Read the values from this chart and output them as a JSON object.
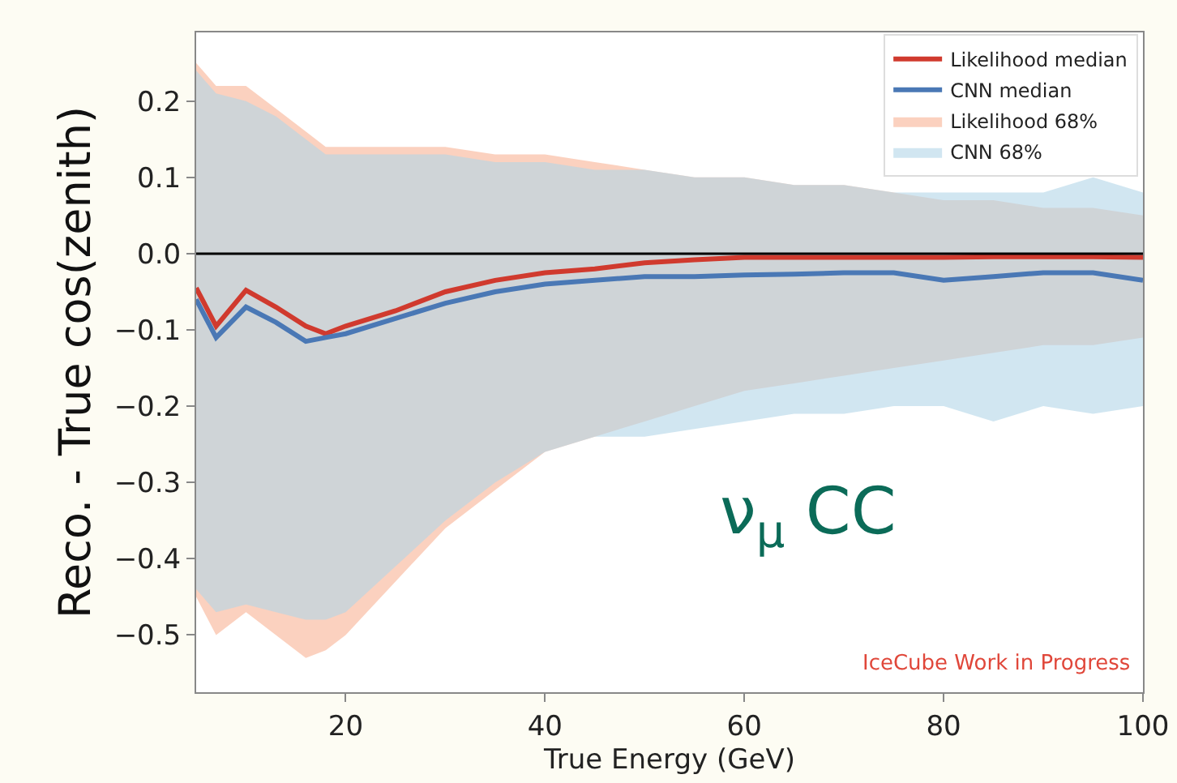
{
  "chart_data": {
    "type": "line",
    "xlabel": "True Energy (GeV)",
    "ylabel": "Reco. - True cos(zenith)",
    "x": [
      5,
      7,
      10,
      13,
      16,
      18,
      20,
      25,
      30,
      35,
      40,
      45,
      50,
      55,
      60,
      65,
      70,
      75,
      80,
      85,
      90,
      95,
      100
    ],
    "series": [
      {
        "name": "Likelihood median",
        "color": "#d03a2e",
        "values": [
          -0.045,
          -0.095,
          -0.048,
          -0.07,
          -0.095,
          -0.105,
          -0.095,
          -0.075,
          -0.05,
          -0.035,
          -0.025,
          -0.02,
          -0.012,
          -0.008,
          -0.005,
          -0.005,
          -0.005,
          -0.005,
          -0.005,
          -0.004,
          -0.004,
          -0.004,
          -0.005
        ]
      },
      {
        "name": "CNN median",
        "color": "#4a78b5",
        "values": [
          -0.06,
          -0.11,
          -0.07,
          -0.09,
          -0.115,
          -0.11,
          -0.105,
          -0.085,
          -0.065,
          -0.05,
          -0.04,
          -0.035,
          -0.03,
          -0.03,
          -0.028,
          -0.027,
          -0.025,
          -0.025,
          -0.035,
          -0.03,
          -0.025,
          -0.025,
          -0.035
        ]
      },
      {
        "name": "Likelihood 68%",
        "color": "#f9b394",
        "values": [
          null,
          null,
          null,
          null,
          null,
          null,
          null,
          null,
          null,
          null,
          null,
          null,
          null,
          null,
          null,
          null,
          null,
          null,
          null,
          null,
          null,
          null,
          null
        ],
        "lower": [
          -0.45,
          -0.5,
          -0.47,
          -0.5,
          -0.53,
          -0.52,
          -0.5,
          -0.43,
          -0.36,
          -0.31,
          -0.26,
          -0.24,
          -0.22,
          -0.2,
          -0.18,
          -0.17,
          -0.16,
          -0.15,
          -0.14,
          -0.13,
          -0.12,
          -0.12,
          -0.11
        ],
        "upper": [
          0.25,
          0.22,
          0.22,
          0.19,
          0.16,
          0.14,
          0.14,
          0.14,
          0.14,
          0.13,
          0.13,
          0.12,
          0.11,
          0.1,
          0.1,
          0.09,
          0.09,
          0.08,
          0.07,
          0.07,
          0.06,
          0.06,
          0.05
        ]
      },
      {
        "name": "CNN 68%",
        "color": "#b3d5e8",
        "values": [
          null,
          null,
          null,
          null,
          null,
          null,
          null,
          null,
          null,
          null,
          null,
          null,
          null,
          null,
          null,
          null,
          null,
          null,
          null,
          null,
          null,
          null,
          null
        ],
        "lower": [
          -0.44,
          -0.47,
          -0.46,
          -0.47,
          -0.48,
          -0.48,
          -0.47,
          -0.41,
          -0.35,
          -0.3,
          -0.26,
          -0.24,
          -0.24,
          -0.23,
          -0.22,
          -0.21,
          -0.21,
          -0.2,
          -0.2,
          -0.22,
          -0.2,
          -0.21,
          -0.2
        ],
        "upper": [
          0.24,
          0.21,
          0.2,
          0.18,
          0.15,
          0.13,
          0.13,
          0.13,
          0.13,
          0.12,
          0.12,
          0.11,
          0.11,
          0.1,
          0.1,
          0.09,
          0.09,
          0.08,
          0.08,
          0.08,
          0.08,
          0.1,
          0.08
        ]
      }
    ],
    "xlim": [
      5,
      100
    ],
    "xticks": [
      20,
      40,
      60,
      80,
      100
    ],
    "ylim": [
      -0.575,
      0.29
    ],
    "yticks": [
      {
        "value": -0.5,
        "label": "−0.5"
      },
      {
        "value": -0.4,
        "label": "−0.4"
      },
      {
        "value": -0.3,
        "label": "−0.3"
      },
      {
        "value": -0.2,
        "label": "−0.2"
      },
      {
        "value": -0.1,
        "label": "−0.1"
      },
      {
        "value": 0,
        "label": "0.0"
      },
      0.1,
      0.2
    ],
    "ref_lines": [
      {
        "axis": "y",
        "value": 0,
        "color": "#000000"
      }
    ],
    "annotations": [
      "ν$_{μ}$ CC",
      "IceCube Work in Progress"
    ],
    "legend": "top right"
  }
}
